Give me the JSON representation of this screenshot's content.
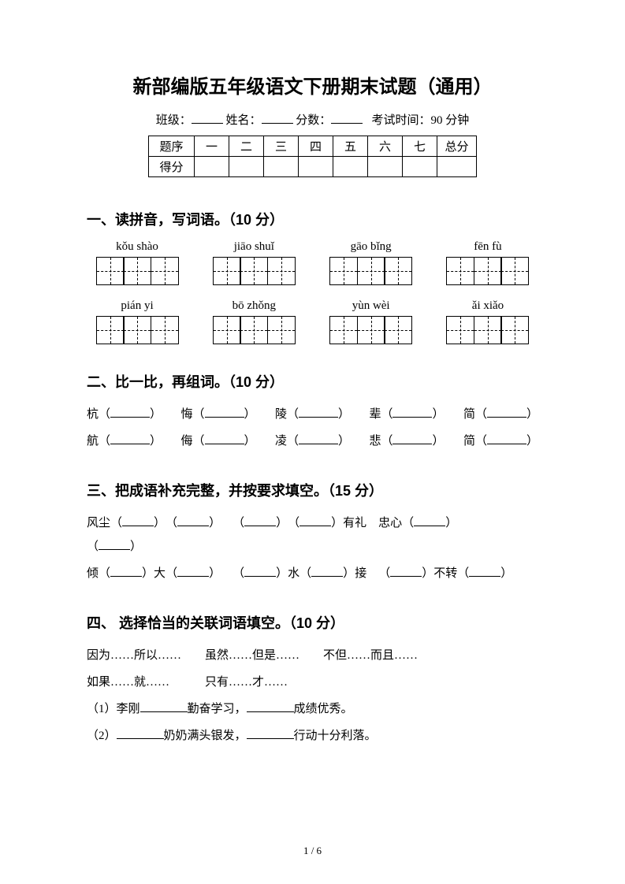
{
  "title": "新部编版五年级语文下册期末试题（通用）",
  "meta": {
    "class_label": "班级：",
    "name_label": "姓名：",
    "score_label": "分数：",
    "time_label": "考试时间：90 分钟"
  },
  "score_table": {
    "row1": [
      "题序",
      "一",
      "二",
      "三",
      "四",
      "五",
      "六",
      "七",
      "总分"
    ],
    "row2_label": "得分"
  },
  "section1": {
    "heading": "一、读拼音，写词语。（10 分）",
    "pinyin_row1": [
      "kǒu shào",
      "jiāo shuǐ",
      "gāo bǐng",
      "fēn fù"
    ],
    "pinyin_row2": [
      "pián yi",
      "bō zhǒng",
      "yùn wèi",
      "ǎi xiǎo"
    ],
    "cells_per_box": 3
  },
  "section2": {
    "heading": "二、比一比，再组词。（10 分）",
    "row1": [
      "杭",
      "悔",
      "陵",
      "辈",
      "简"
    ],
    "row2": [
      "航",
      "侮",
      "凌",
      "悲",
      "简"
    ]
  },
  "section3": {
    "heading": "三、把成语补充完整，并按要求填空。（15 分）",
    "line1_parts": [
      "风尘",
      "有礼　忠心"
    ],
    "line2_parts": [
      "倾",
      "大",
      "水",
      "接",
      "不转"
    ]
  },
  "section4": {
    "heading": "四、 选择恰当的关联词语填空。（10 分）",
    "options_line1": "因为……所以……　　虽然……但是……　　不但……而且……",
    "options_line2": "如果……就……　　　只有……才……",
    "q1_a": "（1）李刚",
    "q1_b": "勤奋学习，",
    "q1_c": "成绩优秀。",
    "q2_a": "（2）",
    "q2_b": "奶奶满头银发，",
    "q2_c": "行动十分利落。"
  },
  "footer": "1 / 6"
}
